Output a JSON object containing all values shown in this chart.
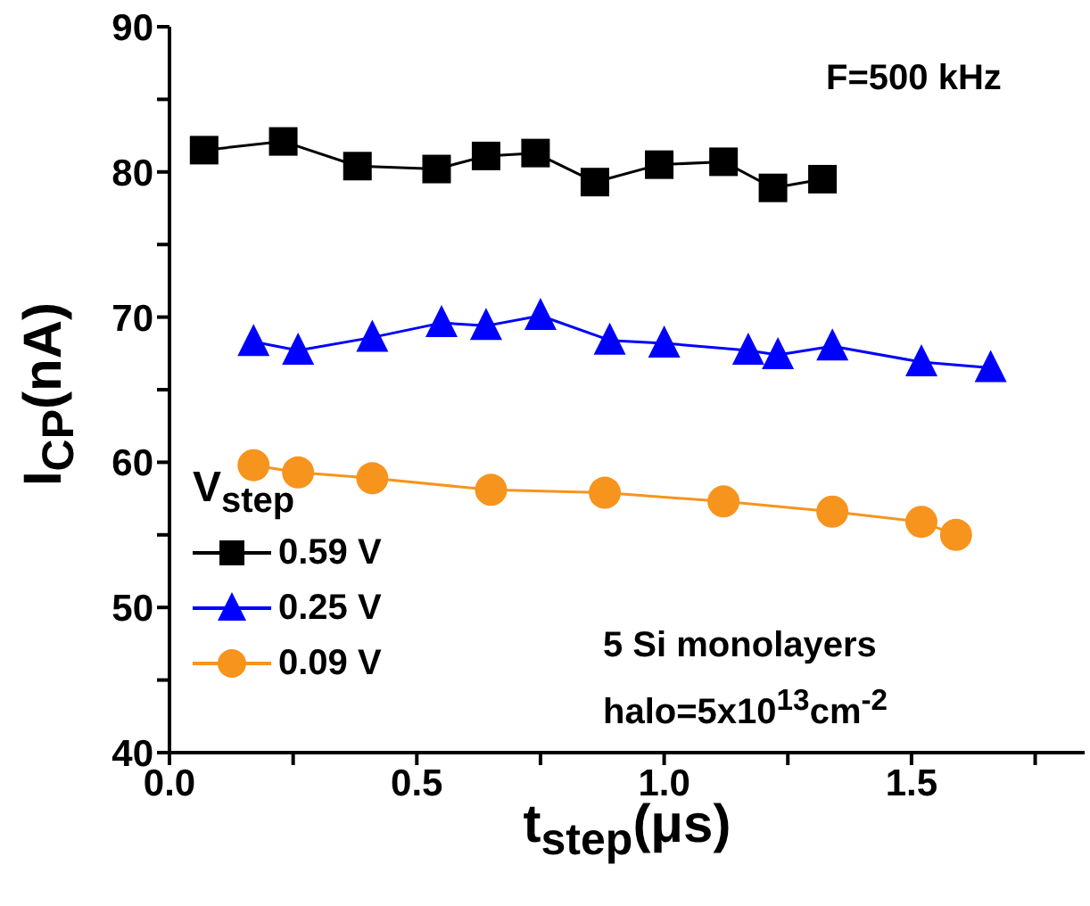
{
  "chart_data": {
    "type": "line",
    "xlabel": "t$_{step}$(μs)",
    "ylabel": "I$_{CP}$(nA)",
    "legend_title": "V$_{step}$",
    "legend": "bottom left",
    "xlim": [
      0,
      1.85
    ],
    "xticks": [
      "0.0",
      {
        "value": 0.25,
        "label": null
      },
      {
        "value": 0.5,
        "label": "0.5"
      },
      {
        "value": 0.75,
        "label": null
      },
      {
        "value": 1,
        "label": "1.0"
      },
      {
        "value": 1.25,
        "label": null
      },
      {
        "value": 1.5,
        "label": "1.5"
      },
      {
        "value": 1.75,
        "label": null
      }
    ],
    "ylim": [
      40,
      90
    ],
    "yticks": [
      40,
      {
        "value": 45,
        "label": null
      },
      50,
      {
        "value": 55,
        "label": null
      },
      60,
      {
        "value": 65,
        "label": null
      },
      70,
      {
        "value": 75,
        "label": null
      },
      80,
      {
        "value": 85,
        "label": null
      },
      90
    ],
    "series": [
      {
        "name": "0.59 V",
        "color": "#000000",
        "marker": "square",
        "x": [
          0.07,
          0.23,
          0.38,
          0.54,
          0.64,
          0.74,
          0.86,
          0.99,
          1.12,
          1.22,
          1.32
        ],
        "values": [
          81.5,
          82.1,
          80.4,
          80.2,
          81.1,
          81.3,
          79.3,
          80.5,
          80.7,
          78.9,
          79.5
        ]
      },
      {
        "name": "0.25 V",
        "color": "#0000ff",
        "marker": "triangle",
        "x": [
          0.17,
          0.26,
          0.41,
          0.55,
          0.64,
          0.75,
          0.89,
          1.0,
          1.17,
          1.23,
          1.34,
          1.52,
          1.66
        ],
        "values": [
          68.3,
          67.7,
          68.6,
          69.6,
          69.4,
          70.1,
          68.4,
          68.2,
          67.7,
          67.4,
          68.0,
          66.9,
          66.5
        ]
      },
      {
        "name": "0.09 V",
        "color": "#f7941d",
        "marker": "circle",
        "x": [
          0.17,
          0.26,
          0.41,
          0.65,
          0.88,
          1.12,
          1.34,
          1.52,
          1.59
        ],
        "values": [
          59.8,
          59.3,
          58.9,
          58.1,
          57.9,
          57.3,
          56.6,
          55.9,
          55.0
        ]
      }
    ],
    "annotations": [
      "F=500 kHz",
      "5 Si monolayers",
      "halo=5x10$^{13}$cm$^{-2}$"
    ]
  }
}
